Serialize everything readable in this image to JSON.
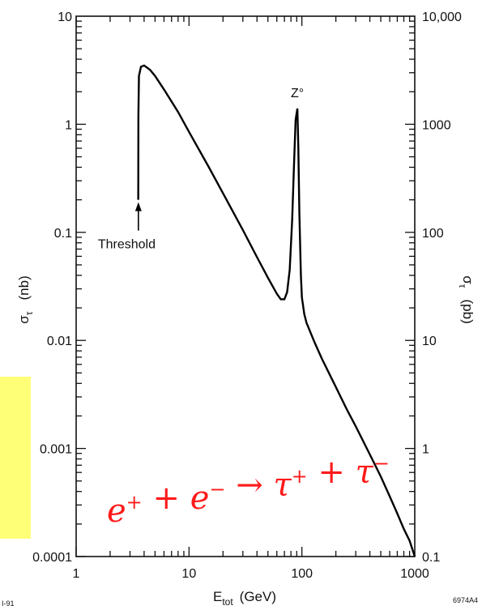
{
  "chart_data": {
    "type": "line",
    "x_scale": "log",
    "y_scale": "log",
    "xlim": [
      1,
      1000
    ],
    "ylim": [
      0.0001,
      10
    ],
    "x_ticks": [
      "1",
      "10",
      "100",
      "1000"
    ],
    "y_left_ticks": [
      "0.0001",
      "0.001",
      "0.01",
      "0.1",
      "1",
      "10"
    ],
    "y_right_ticks": [
      "0.1",
      "1",
      "10",
      "100",
      "1000",
      "10,000"
    ],
    "xlabel_main": "E",
    "xlabel_sub": "tot",
    "xlabel_unit": "(GeV)",
    "ylabel_left_symbol": "σ",
    "ylabel_left_sub": "τ",
    "ylabel_left_unit": "(nb)",
    "ylabel_right_symbol": "σ",
    "ylabel_right_sub": "τ",
    "ylabel_right_unit": "(pb)",
    "series": [
      {
        "x": [
          3.55,
          3.56,
          3.6,
          3.75,
          4.0,
          4.5,
          5,
          6,
          8,
          10,
          15,
          20,
          30,
          40,
          50,
          60,
          65,
          70,
          74,
          78,
          82,
          85,
          88,
          91.2,
          93,
          95,
          98,
          100,
          105,
          110,
          130,
          150,
          200,
          250,
          300,
          400,
          500,
          600,
          700,
          800,
          900,
          1000
        ],
        "y": [
          0.2,
          1.2,
          2.8,
          3.4,
          3.5,
          3.2,
          2.8,
          2.1,
          1.3,
          0.85,
          0.4,
          0.23,
          0.105,
          0.059,
          0.038,
          0.027,
          0.024,
          0.024,
          0.028,
          0.045,
          0.13,
          0.4,
          1.1,
          1.4,
          0.6,
          0.15,
          0.04,
          0.025,
          0.0175,
          0.0145,
          0.0095,
          0.0068,
          0.0037,
          0.0023,
          0.0016,
          0.00088,
          0.00055,
          0.00036,
          0.00025,
          0.00018,
          0.00014,
          0.0001
        ]
      }
    ],
    "annotations": [
      {
        "text": "Threshold",
        "x": 3.56,
        "y": 0.2
      },
      {
        "text": "Z°",
        "x": 91.2,
        "y": 1.4
      }
    ],
    "corner_labels": {
      "bottom_left": "I-91",
      "bottom_right": "6974A4"
    }
  },
  "overlay": {
    "reaction_color": "#ff1a1a",
    "box_color": "#ffff77",
    "parts": [
      {
        "t": "e",
        "sup": "+"
      },
      {
        "t": " + "
      },
      {
        "t": "e",
        "sup": "−"
      },
      {
        "t": " → "
      },
      {
        "t": "τ",
        "sup": "+"
      },
      {
        "t": " + "
      },
      {
        "t": "τ",
        "sup": "−"
      }
    ]
  }
}
